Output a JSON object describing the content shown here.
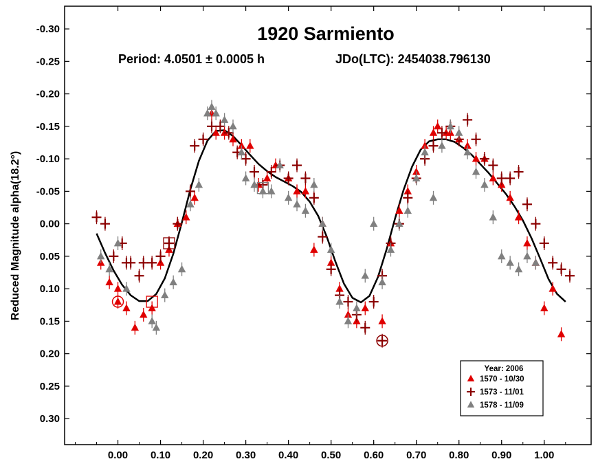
{
  "chart_data": {
    "type": "scatter",
    "title": "1920 Sarmiento",
    "subtitle_period": "Period: 4.0501 ± 0.0005 h",
    "subtitle_epoch": "JDo(LTC): 2454038.796130",
    "xlabel": "",
    "ylabel": "Reduced Magnitude alpha(18.2°)",
    "xlim": [
      -0.125,
      1.11
    ],
    "ylim": [
      -0.335,
      0.34
    ],
    "y_inverted": true,
    "x_ticks": [
      0.0,
      0.1,
      0.2,
      0.3,
      0.4,
      0.5,
      0.6,
      0.7,
      0.8,
      0.9,
      1.0
    ],
    "x_tick_labels": [
      "0.00",
      "0.10",
      "0.20",
      "0.30",
      "0.40",
      "0.50",
      "0.60",
      "0.70",
      "0.80",
      "0.90",
      "1.00"
    ],
    "y_ticks": [
      -0.3,
      -0.25,
      -0.2,
      -0.15,
      -0.1,
      -0.05,
      0.0,
      0.05,
      0.1,
      0.15,
      0.2,
      0.25,
      0.3
    ],
    "y_tick_labels": [
      "-0.30",
      "-0.25",
      "-0.20",
      "-0.15",
      "-0.10",
      "-0.05",
      "0.00",
      "0.05",
      "0.10",
      "0.15",
      "0.20",
      "0.25",
      "0.30"
    ],
    "grid": false,
    "legend": {
      "title": "Year: 2006",
      "placement": "bottom-right",
      "entries": [
        {
          "label": "1570 - 10/30",
          "marker": "triangle",
          "color": "#e00000"
        },
        {
          "label": "1573 - 11/01",
          "marker": "plus",
          "color": "#8b0000"
        },
        {
          "label": "1578 - 11/09",
          "marker": "triangle",
          "color": "#808080"
        }
      ]
    },
    "fit_curve": [
      [
        -0.05,
        0.015
      ],
      [
        -0.03,
        0.045
      ],
      [
        -0.01,
        0.072
      ],
      [
        0.01,
        0.094
      ],
      [
        0.03,
        0.11
      ],
      [
        0.05,
        0.119
      ],
      [
        0.07,
        0.119
      ],
      [
        0.09,
        0.108
      ],
      [
        0.11,
        0.084
      ],
      [
        0.13,
        0.046
      ],
      [
        0.15,
        -0.002
      ],
      [
        0.17,
        -0.053
      ],
      [
        0.19,
        -0.097
      ],
      [
        0.21,
        -0.128
      ],
      [
        0.23,
        -0.143
      ],
      [
        0.25,
        -0.144
      ],
      [
        0.27,
        -0.135
      ],
      [
        0.29,
        -0.121
      ],
      [
        0.31,
        -0.106
      ],
      [
        0.33,
        -0.092
      ],
      [
        0.35,
        -0.081
      ],
      [
        0.37,
        -0.072
      ],
      [
        0.39,
        -0.065
      ],
      [
        0.41,
        -0.058
      ],
      [
        0.43,
        -0.049
      ],
      [
        0.45,
        -0.034
      ],
      [
        0.47,
        -0.012
      ],
      [
        0.49,
        0.02
      ],
      [
        0.51,
        0.058
      ],
      [
        0.53,
        0.092
      ],
      [
        0.55,
        0.114
      ],
      [
        0.57,
        0.121
      ],
      [
        0.59,
        0.111
      ],
      [
        0.61,
        0.082
      ],
      [
        0.63,
        0.04
      ],
      [
        0.65,
        -0.008
      ],
      [
        0.67,
        -0.052
      ],
      [
        0.69,
        -0.088
      ],
      [
        0.71,
        -0.114
      ],
      [
        0.73,
        -0.127
      ],
      [
        0.75,
        -0.13
      ],
      [
        0.77,
        -0.13
      ],
      [
        0.79,
        -0.126
      ],
      [
        0.81,
        -0.117
      ],
      [
        0.83,
        -0.106
      ],
      [
        0.85,
        -0.092
      ],
      [
        0.87,
        -0.078
      ],
      [
        0.89,
        -0.062
      ],
      [
        0.91,
        -0.046
      ],
      [
        0.93,
        -0.027
      ],
      [
        0.95,
        -0.005
      ],
      [
        0.97,
        0.022
      ],
      [
        0.99,
        0.053
      ],
      [
        1.01,
        0.085
      ],
      [
        1.03,
        0.108
      ],
      [
        1.05,
        0.12
      ]
    ],
    "series": [
      {
        "name": "1570 - 10/30",
        "marker": "triangle",
        "color": "#e00000",
        "points": [
          [
            -0.04,
            0.06
          ],
          [
            -0.02,
            0.09
          ],
          [
            0.0,
            0.1
          ],
          [
            0.02,
            0.13
          ],
          [
            0.04,
            0.16
          ],
          [
            0.06,
            0.14
          ],
          [
            0.08,
            0.13
          ],
          [
            0.1,
            0.06
          ],
          [
            0.12,
            0.04
          ],
          [
            0.14,
            0.0
          ],
          [
            0.16,
            -0.01
          ],
          [
            0.18,
            -0.04
          ],
          [
            0.22,
            -0.17
          ],
          [
            0.23,
            -0.14
          ],
          [
            0.25,
            -0.14
          ],
          [
            0.27,
            -0.13
          ],
          [
            0.29,
            -0.12
          ],
          [
            0.31,
            -0.12
          ],
          [
            0.33,
            -0.06
          ],
          [
            0.35,
            -0.07
          ],
          [
            0.37,
            -0.09
          ],
          [
            0.4,
            -0.07
          ],
          [
            0.42,
            -0.05
          ],
          [
            0.44,
            -0.05
          ],
          [
            0.46,
            0.04
          ],
          [
            0.48,
            0.0
          ],
          [
            0.5,
            0.06
          ],
          [
            0.52,
            0.1
          ],
          [
            0.54,
            0.14
          ],
          [
            0.56,
            0.15
          ],
          [
            0.58,
            0.13
          ],
          [
            0.62,
            0.15
          ],
          [
            0.64,
            0.03
          ],
          [
            0.66,
            -0.02
          ],
          [
            0.68,
            -0.05
          ],
          [
            0.7,
            -0.08
          ],
          [
            0.72,
            -0.12
          ],
          [
            0.74,
            -0.14
          ],
          [
            0.75,
            -0.15
          ],
          [
            0.77,
            -0.14
          ],
          [
            0.78,
            -0.14
          ],
          [
            0.8,
            -0.13
          ],
          [
            0.82,
            -0.12
          ],
          [
            0.84,
            -0.1
          ],
          [
            0.86,
            -0.1
          ],
          [
            0.88,
            -0.07
          ],
          [
            0.9,
            -0.06
          ],
          [
            0.92,
            -0.04
          ],
          [
            0.94,
            -0.01
          ],
          [
            0.96,
            0.03
          ],
          [
            0.98,
            0.06
          ],
          [
            1.0,
            0.13
          ],
          [
            1.02,
            0.1
          ],
          [
            1.04,
            0.17
          ],
          [
            0.0,
            0.12
          ]
        ]
      },
      {
        "name": "1573 - 11/01",
        "marker": "plus",
        "color": "#8b0000",
        "points": [
          [
            -0.05,
            -0.01
          ],
          [
            -0.03,
            0.0
          ],
          [
            -0.01,
            0.05
          ],
          [
            0.01,
            0.03
          ],
          [
            0.02,
            0.06
          ],
          [
            0.03,
            0.06
          ],
          [
            0.05,
            0.08
          ],
          [
            0.06,
            0.06
          ],
          [
            0.08,
            0.06
          ],
          [
            0.1,
            0.05
          ],
          [
            0.12,
            0.03
          ],
          [
            0.14,
            0.0
          ],
          [
            0.17,
            -0.05
          ],
          [
            0.18,
            -0.12
          ],
          [
            0.2,
            -0.13
          ],
          [
            0.22,
            -0.15
          ],
          [
            0.24,
            -0.15
          ],
          [
            0.26,
            -0.14
          ],
          [
            0.28,
            -0.11
          ],
          [
            0.3,
            -0.1
          ],
          [
            0.32,
            -0.08
          ],
          [
            0.34,
            -0.06
          ],
          [
            0.36,
            -0.08
          ],
          [
            0.38,
            -0.09
          ],
          [
            0.4,
            -0.07
          ],
          [
            0.42,
            -0.09
          ],
          [
            0.44,
            -0.07
          ],
          [
            0.46,
            -0.04
          ],
          [
            0.48,
            0.02
          ],
          [
            0.5,
            0.07
          ],
          [
            0.52,
            0.11
          ],
          [
            0.54,
            0.12
          ],
          [
            0.56,
            0.14
          ],
          [
            0.58,
            0.16
          ],
          [
            0.6,
            0.12
          ],
          [
            0.62,
            0.08
          ],
          [
            0.64,
            0.03
          ],
          [
            0.66,
            0.0
          ],
          [
            0.68,
            -0.04
          ],
          [
            0.7,
            -0.07
          ],
          [
            0.72,
            -0.1
          ],
          [
            0.74,
            -0.12
          ],
          [
            0.76,
            -0.14
          ],
          [
            0.78,
            -0.15
          ],
          [
            0.8,
            -0.13
          ],
          [
            0.82,
            -0.16
          ],
          [
            0.84,
            -0.13
          ],
          [
            0.86,
            -0.1
          ],
          [
            0.88,
            -0.09
          ],
          [
            0.9,
            -0.07
          ],
          [
            0.92,
            -0.07
          ],
          [
            0.94,
            -0.08
          ],
          [
            0.96,
            -0.03
          ],
          [
            0.98,
            0.0
          ],
          [
            1.0,
            0.03
          ],
          [
            1.02,
            0.06
          ],
          [
            1.04,
            0.07
          ],
          [
            1.06,
            0.08
          ],
          [
            0.62,
            0.18
          ],
          [
            0.12,
            0.03
          ]
        ]
      },
      {
        "name": "1578 - 11/09",
        "marker": "triangle",
        "color": "#808080",
        "points": [
          [
            -0.04,
            0.05
          ],
          [
            -0.02,
            0.07
          ],
          [
            0.0,
            0.03
          ],
          [
            0.02,
            0.1
          ],
          [
            0.08,
            0.15
          ],
          [
            0.09,
            0.16
          ],
          [
            0.11,
            0.11
          ],
          [
            0.13,
            0.09
          ],
          [
            0.15,
            0.07
          ],
          [
            0.17,
            -0.03
          ],
          [
            0.19,
            -0.06
          ],
          [
            0.21,
            -0.17
          ],
          [
            0.22,
            -0.18
          ],
          [
            0.23,
            -0.17
          ],
          [
            0.25,
            -0.16
          ],
          [
            0.27,
            -0.15
          ],
          [
            0.29,
            -0.11
          ],
          [
            0.3,
            -0.07
          ],
          [
            0.32,
            -0.06
          ],
          [
            0.34,
            -0.05
          ],
          [
            0.36,
            -0.05
          ],
          [
            0.38,
            -0.09
          ],
          [
            0.4,
            -0.04
          ],
          [
            0.42,
            -0.03
          ],
          [
            0.44,
            -0.02
          ],
          [
            0.46,
            -0.06
          ],
          [
            0.48,
            0.0
          ],
          [
            0.5,
            0.04
          ],
          [
            0.52,
            0.12
          ],
          [
            0.54,
            0.15
          ],
          [
            0.56,
            0.13
          ],
          [
            0.58,
            0.08
          ],
          [
            0.6,
            0.0
          ],
          [
            0.62,
            0.09
          ],
          [
            0.64,
            0.04
          ],
          [
            0.66,
            0.0
          ],
          [
            0.68,
            -0.02
          ],
          [
            0.7,
            -0.07
          ],
          [
            0.72,
            -0.11
          ],
          [
            0.74,
            -0.04
          ],
          [
            0.76,
            -0.12
          ],
          [
            0.78,
            -0.15
          ],
          [
            0.8,
            -0.14
          ],
          [
            0.82,
            -0.11
          ],
          [
            0.84,
            -0.08
          ],
          [
            0.86,
            -0.06
          ],
          [
            0.88,
            -0.01
          ],
          [
            0.9,
            0.05
          ],
          [
            0.92,
            0.06
          ],
          [
            0.94,
            0.07
          ],
          [
            0.96,
            0.05
          ],
          [
            0.98,
            0.06
          ]
        ]
      }
    ]
  }
}
